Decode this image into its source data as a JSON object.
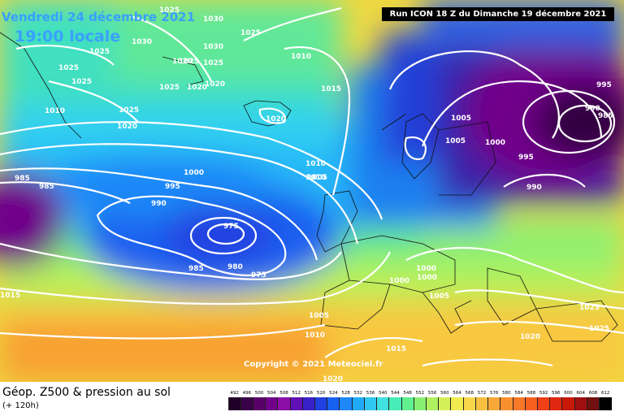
{
  "header": {
    "date": "Vendredi 24 décembre 2021",
    "time": "19:00 locale",
    "run_info": "Run ICON 18 Z du Dimanche 19 décembre 2021"
  },
  "copyright": "Copyright © 2021 Meteociel.fr",
  "footer": {
    "title": "Géop. Z500 & pression au sol",
    "subtitle": "(+ 120h)"
  },
  "scale": {
    "ticks": [
      492,
      496,
      500,
      504,
      508,
      512,
      516,
      520,
      524,
      528,
      532,
      536,
      540,
      544,
      548,
      552,
      556,
      560,
      564,
      568,
      572,
      576,
      580,
      584,
      588,
      592,
      596,
      600,
      604,
      608,
      612
    ],
    "colors": [
      "#200028",
      "#3a0048",
      "#560068",
      "#70008a",
      "#8c10a8",
      "#6010b4",
      "#3a20c8",
      "#2040e0",
      "#1860f0",
      "#1e88f8",
      "#20aaf8",
      "#30c8f0",
      "#40e0e0",
      "#48ecb8",
      "#60f090",
      "#88f070",
      "#aef060",
      "#d4f058",
      "#f0ec50",
      "#f8d848",
      "#f8c040",
      "#f8a838",
      "#f89030",
      "#f87828",
      "#f86020",
      "#f04018",
      "#e02810",
      "#c81808",
      "#a01010",
      "#701010",
      "#000000"
    ]
  },
  "pressure_labels": [
    {
      "text": "1025"
    },
    {
      "text": "1030"
    },
    {
      "text": "1030"
    },
    {
      "text": "1025"
    },
    {
      "text": "1025"
    },
    {
      "text": "1025"
    },
    {
      "text": "1030"
    },
    {
      "text": "1025"
    },
    {
      "text": "1020"
    },
    {
      "text": "1025"
    },
    {
      "text": "1025"
    },
    {
      "text": "1020"
    },
    {
      "text": "1025"
    },
    {
      "text": "1020"
    },
    {
      "text": "1010"
    },
    {
      "text": "1025"
    },
    {
      "text": "1020"
    },
    {
      "text": "1020"
    },
    {
      "text": "1015"
    },
    {
      "text": "1005"
    },
    {
      "text": "1005"
    },
    {
      "text": "1000"
    },
    {
      "text": "995"
    },
    {
      "text": "990"
    },
    {
      "text": "985"
    },
    {
      "text": "995"
    },
    {
      "text": "990"
    },
    {
      "text": "1010"
    },
    {
      "text": "1010"
    },
    {
      "text": "1010"
    },
    {
      "text": "1005"
    },
    {
      "text": "1000"
    },
    {
      "text": "995"
    },
    {
      "text": "990"
    },
    {
      "text": "985"
    },
    {
      "text": "985"
    },
    {
      "text": "975"
    },
    {
      "text": "985"
    },
    {
      "text": "980"
    },
    {
      "text": "975"
    },
    {
      "text": "1000"
    },
    {
      "text": "1000"
    },
    {
      "text": "1000"
    },
    {
      "text": "1005"
    },
    {
      "text": "1005"
    },
    {
      "text": "1010"
    },
    {
      "text": "1015"
    },
    {
      "text": "1020"
    },
    {
      "text": "1025"
    },
    {
      "text": "1025"
    },
    {
      "text": "1015"
    },
    {
      "text": "1020"
    }
  ]
}
